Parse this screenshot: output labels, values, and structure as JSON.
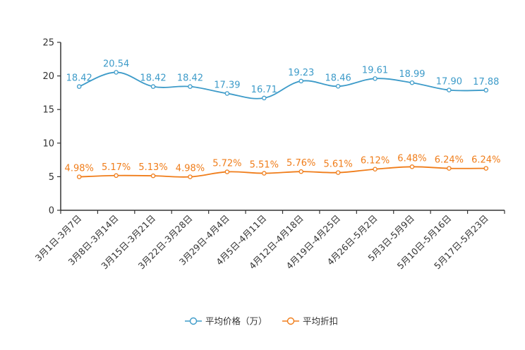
{
  "chart_data": {
    "type": "line",
    "title": "",
    "xlabel": "",
    "ylabel": "",
    "ylim": [
      0,
      25
    ],
    "yticks": [
      0,
      5,
      10,
      15,
      20,
      25
    ],
    "categories": [
      "3月1日-3月7日",
      "3月8日-3月14日",
      "3月15日-3月21日",
      "3月22日-3月28日",
      "3月29日-4月4日",
      "4月5日-4月11日",
      "4月12日-4月18日",
      "4月19日-4月25日",
      "4月26日-5月2日",
      "5月3日-5月9日",
      "5月10日-5月16日",
      "5月17日-5月23日"
    ],
    "series": [
      {
        "name": "平均价格（万）",
        "color": "#3d9bc9",
        "values": [
          18.42,
          20.54,
          18.42,
          18.42,
          17.39,
          16.71,
          19.23,
          18.46,
          19.61,
          18.99,
          17.9,
          17.88
        ],
        "labels": [
          "18.42",
          "20.54",
          "18.42",
          "18.42",
          "17.39",
          "16.71",
          "19.23",
          "18.46",
          "19.61",
          "18.99",
          "17.90",
          "17.88"
        ]
      },
      {
        "name": "平均折扣",
        "color": "#f07d1a",
        "values": [
          4.98,
          5.17,
          5.13,
          4.98,
          5.72,
          5.51,
          5.76,
          5.61,
          6.12,
          6.48,
          6.24,
          6.24
        ],
        "labels": [
          "4.98%",
          "5.17%",
          "5.13%",
          "4.98%",
          "5.72%",
          "5.51%",
          "5.76%",
          "5.61%",
          "6.12%",
          "6.48%",
          "6.24%",
          "6.24%"
        ]
      }
    ],
    "legend_position": "bottom-center",
    "grid": false
  }
}
